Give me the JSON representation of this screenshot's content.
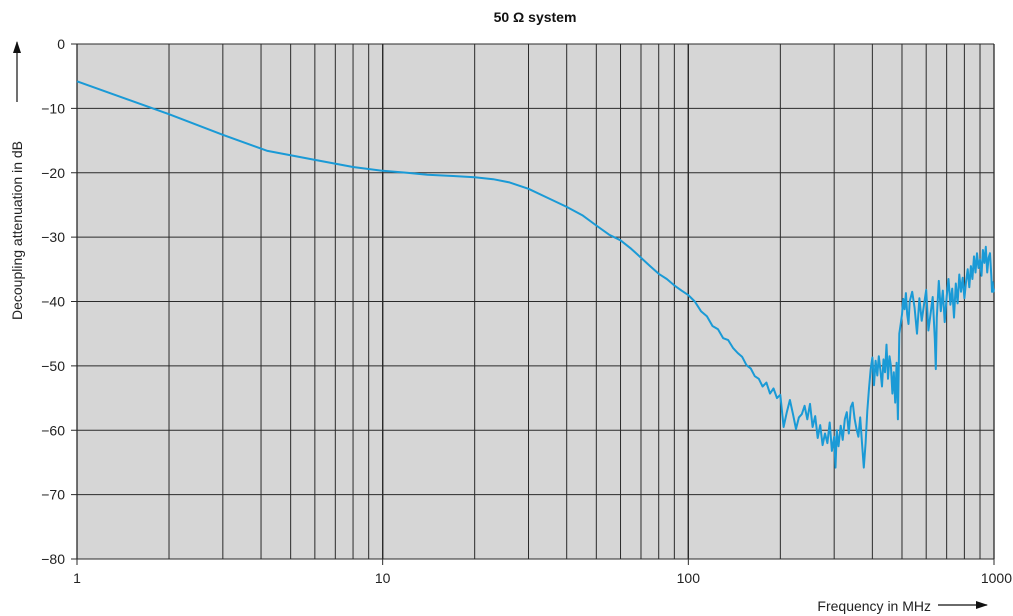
{
  "chart_data": {
    "type": "line",
    "title": "50 Ω system",
    "xlabel": "Frequency in MHz",
    "ylabel": "Decoupling attenuation in dB",
    "x_scale": "log",
    "xlim": [
      1,
      1000
    ],
    "ylim": [
      -80,
      0
    ],
    "x_ticks": [
      1,
      10,
      100,
      1000
    ],
    "y_ticks": [
      0,
      -10,
      -20,
      -30,
      -40,
      -50,
      -60,
      -70,
      -80
    ],
    "x_tick_labels": [
      "1",
      "10",
      "100",
      "1000"
    ],
    "y_tick_labels": [
      "0",
      "−10",
      "−20",
      "−30",
      "−40",
      "−50",
      "−60",
      "−70",
      "−80"
    ],
    "grid": true,
    "colors": {
      "line": "#1a9ad6",
      "plot_bg": "#d6d6d6",
      "grid": "#2a2a2a"
    },
    "series": [
      {
        "values": [
          [
            1,
            -5.8
          ],
          [
            2,
            -10.9
          ],
          [
            3,
            -14.1
          ],
          [
            4.2,
            -16.6
          ],
          [
            6,
            -18.0
          ],
          [
            8,
            -19.1
          ],
          [
            10,
            -19.7
          ],
          [
            12,
            -20.0
          ],
          [
            14,
            -20.3
          ],
          [
            17,
            -20.5
          ],
          [
            20,
            -20.7
          ],
          [
            23,
            -21.0
          ],
          [
            26,
            -21.5
          ],
          [
            30,
            -22.5
          ],
          [
            35,
            -24.0
          ],
          [
            40,
            -25.3
          ],
          [
            45,
            -26.6
          ],
          [
            50,
            -28.2
          ],
          [
            55,
            -29.6
          ],
          [
            60,
            -30.5
          ],
          [
            65,
            -31.8
          ],
          [
            70,
            -33.2
          ],
          [
            75,
            -34.5
          ],
          [
            80,
            -35.7
          ],
          [
            85,
            -36.5
          ],
          [
            90,
            -37.5
          ],
          [
            95,
            -38.3
          ],
          [
            100,
            -39.0
          ],
          [
            105,
            -40.0
          ],
          [
            110,
            -41.5
          ],
          [
            115,
            -42.3
          ],
          [
            120,
            -43.8
          ],
          [
            125,
            -44.3
          ],
          [
            130,
            -45.7
          ],
          [
            135,
            -46.0
          ],
          [
            140,
            -47.2
          ],
          [
            145,
            -48.0
          ],
          [
            150,
            -48.6
          ],
          [
            155,
            -49.9
          ],
          [
            160,
            -50.4
          ],
          [
            165,
            -51.6
          ],
          [
            170,
            -52.0
          ],
          [
            175,
            -53.2
          ],
          [
            180,
            -52.6
          ],
          [
            185,
            -54.3
          ],
          [
            190,
            -53.5
          ],
          [
            195,
            -55.0
          ],
          [
            200,
            -54.5
          ],
          [
            205,
            -59.5
          ],
          [
            210,
            -57.2
          ],
          [
            215,
            -55.3
          ],
          [
            220,
            -57.5
          ],
          [
            225,
            -59.8
          ],
          [
            230,
            -58.0
          ],
          [
            235,
            -57.5
          ],
          [
            240,
            -56.2
          ],
          [
            245,
            -58.3
          ],
          [
            250,
            -55.9
          ],
          [
            255,
            -59.5
          ],
          [
            260,
            -57.8
          ],
          [
            265,
            -61.2
          ],
          [
            270,
            -59.2
          ],
          [
            275,
            -62.3
          ],
          [
            280,
            -60.5
          ],
          [
            285,
            -62.0
          ],
          [
            290,
            -58.8
          ],
          [
            295,
            -63.2
          ],
          [
            300,
            -61.0
          ],
          [
            303,
            -65.8
          ],
          [
            306,
            -60.0
          ],
          [
            310,
            -62.5
          ],
          [
            315,
            -59.3
          ],
          [
            320,
            -61.5
          ],
          [
            325,
            -58.3
          ],
          [
            330,
            -57.2
          ],
          [
            335,
            -60.5
          ],
          [
            340,
            -56.4
          ],
          [
            345,
            -55.7
          ],
          [
            350,
            -58.2
          ],
          [
            355,
            -59.8
          ],
          [
            360,
            -61.0
          ],
          [
            365,
            -58.0
          ],
          [
            370,
            -62.0
          ],
          [
            375,
            -65.8
          ],
          [
            380,
            -62.0
          ],
          [
            385,
            -57.0
          ],
          [
            390,
            -53.5
          ],
          [
            395,
            -50.5
          ],
          [
            400,
            -48.7
          ],
          [
            405,
            -53.0
          ],
          [
            410,
            -49.2
          ],
          [
            415,
            -51.5
          ],
          [
            420,
            -48.5
          ],
          [
            425,
            -50.7
          ],
          [
            430,
            -53.2
          ],
          [
            435,
            -49.0
          ],
          [
            440,
            -51.0
          ],
          [
            445,
            -46.7
          ],
          [
            450,
            -52.0
          ],
          [
            455,
            -48.5
          ],
          [
            460,
            -50.0
          ],
          [
            465,
            -54.3
          ],
          [
            470,
            -51.0
          ],
          [
            475,
            -55.7
          ],
          [
            480,
            -49.5
          ],
          [
            485,
            -58.3
          ],
          [
            490,
            -45.0
          ],
          [
            495,
            -43.5
          ],
          [
            500,
            -42.0
          ],
          [
            505,
            -39.6
          ],
          [
            510,
            -41.2
          ],
          [
            515,
            -38.7
          ],
          [
            520,
            -42.0
          ],
          [
            525,
            -43.5
          ],
          [
            530,
            -40.0
          ],
          [
            540,
            -38.5
          ],
          [
            550,
            -41.0
          ],
          [
            560,
            -45.0
          ],
          [
            570,
            -39.5
          ],
          [
            580,
            -43.0
          ],
          [
            590,
            -40.5
          ],
          [
            600,
            -38.2
          ],
          [
            610,
            -44.5
          ],
          [
            620,
            -42.0
          ],
          [
            630,
            -39.3
          ],
          [
            640,
            -45.8
          ],
          [
            645,
            -50.5
          ],
          [
            650,
            -42.5
          ],
          [
            660,
            -36.8
          ],
          [
            670,
            -41.5
          ],
          [
            680,
            -38.3
          ],
          [
            690,
            -43.2
          ],
          [
            700,
            -39.2
          ],
          [
            710,
            -36.5
          ],
          [
            720,
            -40.5
          ],
          [
            730,
            -38.0
          ],
          [
            740,
            -42.5
          ],
          [
            750,
            -37.2
          ],
          [
            760,
            -40.3
          ],
          [
            770,
            -35.8
          ],
          [
            780,
            -38.5
          ],
          [
            790,
            -36.3
          ],
          [
            800,
            -39.5
          ],
          [
            810,
            -37.0
          ],
          [
            820,
            -35.0
          ],
          [
            830,
            -37.8
          ],
          [
            840,
            -34.5
          ],
          [
            850,
            -36.5
          ],
          [
            860,
            -33.0
          ],
          [
            870,
            -35.5
          ],
          [
            880,
            -32.5
          ],
          [
            890,
            -34.8
          ],
          [
            900,
            -33.5
          ],
          [
            910,
            -36.0
          ],
          [
            920,
            -32.0
          ],
          [
            930,
            -34.0
          ],
          [
            940,
            -31.5
          ],
          [
            950,
            -35.5
          ],
          [
            960,
            -33.2
          ],
          [
            970,
            -32.5
          ],
          [
            980,
            -36.0
          ],
          [
            985,
            -38.5
          ],
          [
            990,
            -37.0
          ],
          [
            995,
            -38.5
          ],
          [
            1000,
            -38.0
          ]
        ]
      }
    ]
  }
}
